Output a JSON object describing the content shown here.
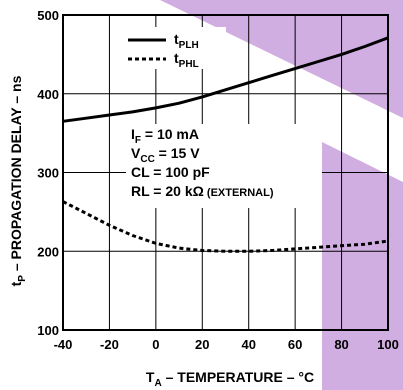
{
  "chart_data": {
    "type": "line",
    "xlabel_main": "T",
    "xlabel_sub": "A",
    "xlabel_rest": " – TEMPERATURE – °C",
    "ylabel_main": "t",
    "ylabel_sub": "P",
    "ylabel_rest": " – PROPAGATION DELAY – ns",
    "xlim": [
      -40,
      100
    ],
    "ylim": [
      100,
      500
    ],
    "x_ticks": [
      -40,
      -20,
      0,
      20,
      40,
      60,
      80,
      100
    ],
    "y_ticks": [
      100,
      200,
      300,
      400,
      500
    ],
    "grid": true,
    "legend_position": "top-left",
    "series": [
      {
        "name_main": "t",
        "name_sub": "PLH",
        "style": "solid",
        "x": [
          -40,
          -30,
          -20,
          -10,
          0,
          10,
          20,
          30,
          40,
          50,
          60,
          70,
          80,
          90,
          100
        ],
        "y": [
          365,
          369,
          373,
          377,
          382,
          388,
          396,
          405,
          414,
          423,
          432,
          441,
          450,
          460,
          471
        ]
      },
      {
        "name_main": "t",
        "name_sub": "PHL",
        "style": "dashed",
        "x": [
          -40,
          -30,
          -20,
          -10,
          0,
          10,
          20,
          30,
          40,
          50,
          60,
          70,
          80,
          90,
          100
        ],
        "y": [
          263,
          248,
          233,
          220,
          210,
          204,
          201,
          200,
          200,
          201,
          203,
          205,
          207,
          209,
          213
        ]
      }
    ],
    "annotations": [
      {
        "main": "I",
        "sub": "F",
        "rest": " = 10 mA"
      },
      {
        "main": "V",
        "sub": "CC",
        "rest": " = 15 V"
      },
      {
        "main": "CL = 100 pF",
        "sub": "",
        "rest": ""
      },
      {
        "main": "RL = 20  kΩ",
        "sub": "",
        "rest": " (EXTERNAL)"
      }
    ]
  },
  "decoration": {
    "accent_color": "#c9a0dc"
  }
}
